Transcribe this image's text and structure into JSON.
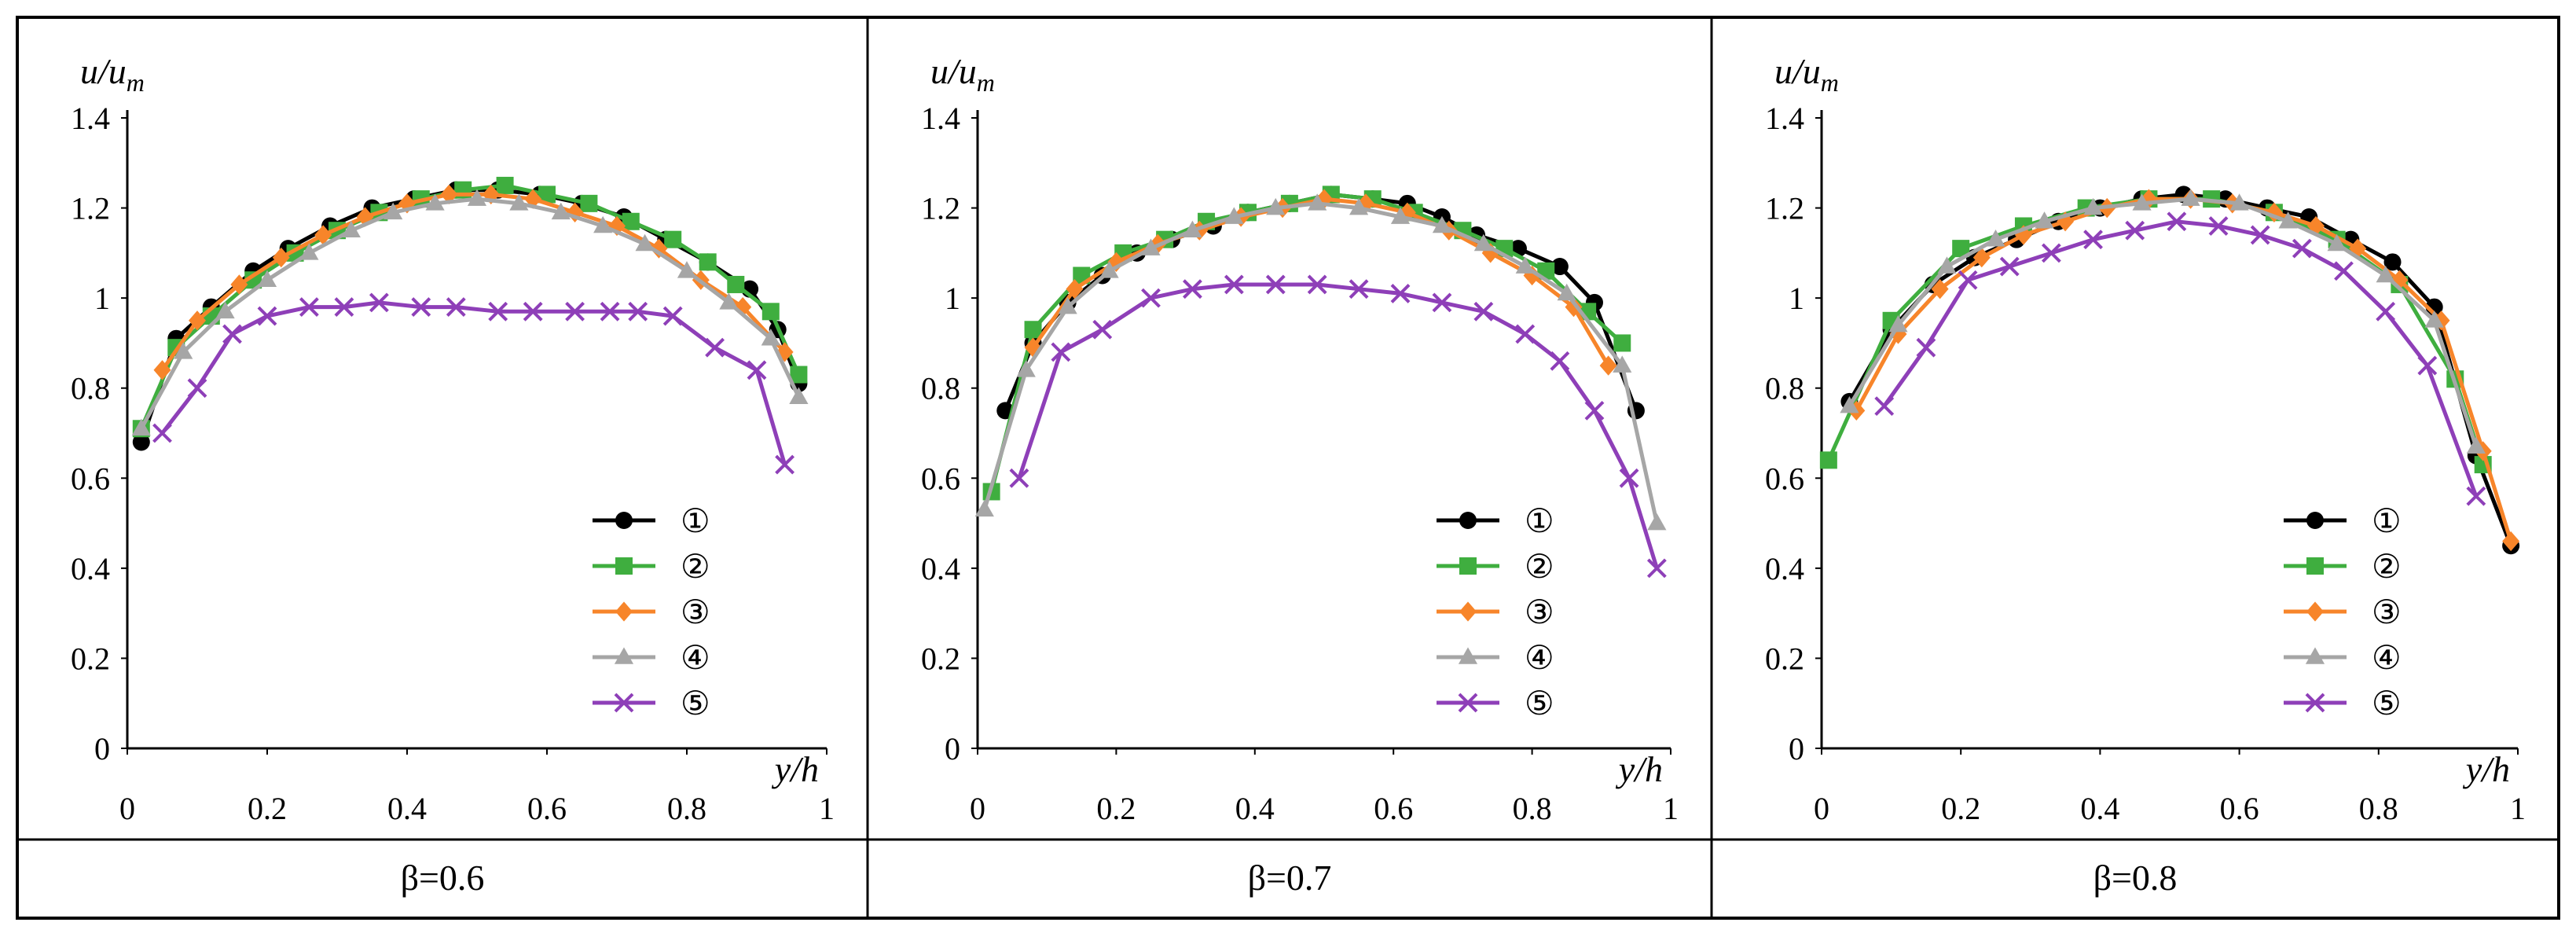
{
  "figure": {
    "y_axis_label_main": "u/u",
    "y_axis_label_sub": "m",
    "x_axis_label": "y/h",
    "legend_labels": [
      "①",
      "②",
      "③",
      "④",
      "⑤"
    ],
    "panel_captions": [
      "β=0.6",
      "β=0.7",
      "β=0.8"
    ]
  },
  "colors": {
    "s1": "#000000",
    "s2": "#3fae3f",
    "s3": "#f7852a",
    "s4": "#a6a6a6",
    "s5": "#8e3fb8",
    "border": "#000000",
    "axis": "#000000"
  },
  "chart_data": [
    {
      "type": "line",
      "title": "β=0.6",
      "xlabel": "y/h",
      "ylabel": "u/u_m",
      "xlim": [
        0,
        1
      ],
      "ylim": [
        0,
        1.4
      ],
      "xticks": [
        "0",
        "0.2",
        "0.4",
        "0.6",
        "0.8",
        "1"
      ],
      "yticks": [
        "0",
        "0.2",
        "0.4",
        "0.6",
        "0.8",
        "1",
        "1.2",
        "1.4"
      ],
      "legend": "bottom-right",
      "series": [
        {
          "name": "①",
          "marker": "circle",
          "x": [
            0.02,
            0.07,
            0.12,
            0.18,
            0.23,
            0.29,
            0.35,
            0.41,
            0.47,
            0.53,
            0.59,
            0.65,
            0.71,
            0.77,
            0.83,
            0.89,
            0.93,
            0.96
          ],
          "y": [
            0.68,
            0.91,
            0.98,
            1.06,
            1.11,
            1.16,
            1.2,
            1.22,
            1.24,
            1.24,
            1.23,
            1.21,
            1.18,
            1.13,
            1.08,
            1.02,
            0.93,
            0.81
          ]
        },
        {
          "name": "②",
          "marker": "square",
          "x": [
            0.02,
            0.07,
            0.12,
            0.18,
            0.24,
            0.3,
            0.36,
            0.42,
            0.48,
            0.54,
            0.6,
            0.66,
            0.72,
            0.78,
            0.83,
            0.87,
            0.92,
            0.96
          ],
          "y": [
            0.71,
            0.89,
            0.96,
            1.04,
            1.1,
            1.15,
            1.19,
            1.22,
            1.24,
            1.25,
            1.23,
            1.21,
            1.17,
            1.13,
            1.08,
            1.03,
            0.97,
            0.83
          ]
        },
        {
          "name": "③",
          "marker": "diamond",
          "x": [
            0.05,
            0.1,
            0.16,
            0.22,
            0.28,
            0.34,
            0.4,
            0.46,
            0.52,
            0.58,
            0.64,
            0.7,
            0.76,
            0.82,
            0.88,
            0.94
          ],
          "y": [
            0.84,
            0.95,
            1.03,
            1.09,
            1.14,
            1.18,
            1.21,
            1.23,
            1.23,
            1.22,
            1.19,
            1.16,
            1.11,
            1.04,
            0.98,
            0.88
          ]
        },
        {
          "name": "④",
          "marker": "triangle",
          "x": [
            0.02,
            0.08,
            0.14,
            0.2,
            0.26,
            0.32,
            0.38,
            0.44,
            0.5,
            0.56,
            0.62,
            0.68,
            0.74,
            0.8,
            0.86,
            0.92,
            0.96
          ],
          "y": [
            0.71,
            0.88,
            0.97,
            1.04,
            1.1,
            1.15,
            1.19,
            1.21,
            1.22,
            1.21,
            1.19,
            1.16,
            1.12,
            1.06,
            0.99,
            0.91,
            0.78
          ]
        },
        {
          "name": "⑤",
          "marker": "x",
          "x": [
            0.05,
            0.1,
            0.15,
            0.2,
            0.26,
            0.31,
            0.36,
            0.42,
            0.47,
            0.53,
            0.58,
            0.64,
            0.69,
            0.73,
            0.78,
            0.84,
            0.9,
            0.94
          ],
          "y": [
            0.7,
            0.8,
            0.92,
            0.96,
            0.98,
            0.98,
            0.99,
            0.98,
            0.98,
            0.97,
            0.97,
            0.97,
            0.97,
            0.97,
            0.96,
            0.89,
            0.84,
            0.63
          ]
        }
      ]
    },
    {
      "type": "line",
      "title": "β=0.7",
      "xlabel": "y/h",
      "ylabel": "u/u_m",
      "xlim": [
        0,
        1
      ],
      "ylim": [
        0,
        1.4
      ],
      "xticks": [
        "0",
        "0.2",
        "0.4",
        "0.6",
        "0.8",
        "1"
      ],
      "yticks": [
        "0",
        "0.2",
        "0.4",
        "0.6",
        "0.8",
        "1",
        "1.2",
        "1.4"
      ],
      "legend": "bottom-right",
      "series": [
        {
          "name": "①",
          "marker": "circle",
          "x": [
            0.04,
            0.08,
            0.13,
            0.18,
            0.23,
            0.28,
            0.34,
            0.39,
            0.45,
            0.51,
            0.57,
            0.62,
            0.67,
            0.72,
            0.78,
            0.84,
            0.89,
            0.95
          ],
          "y": [
            0.75,
            0.9,
            0.99,
            1.05,
            1.1,
            1.13,
            1.16,
            1.19,
            1.21,
            1.23,
            1.22,
            1.21,
            1.18,
            1.14,
            1.11,
            1.07,
            0.99,
            0.75
          ]
        },
        {
          "name": "②",
          "marker": "square",
          "x": [
            0.02,
            0.08,
            0.15,
            0.21,
            0.27,
            0.33,
            0.39,
            0.45,
            0.51,
            0.57,
            0.63,
            0.7,
            0.76,
            0.82,
            0.88,
            0.93
          ],
          "y": [
            0.57,
            0.93,
            1.05,
            1.1,
            1.13,
            1.17,
            1.19,
            1.21,
            1.23,
            1.22,
            1.19,
            1.15,
            1.11,
            1.06,
            0.97,
            0.9
          ]
        },
        {
          "name": "③",
          "marker": "diamond",
          "x": [
            0.08,
            0.14,
            0.2,
            0.26,
            0.32,
            0.38,
            0.44,
            0.5,
            0.56,
            0.62,
            0.68,
            0.74,
            0.8,
            0.86,
            0.91
          ],
          "y": [
            0.89,
            1.02,
            1.08,
            1.12,
            1.15,
            1.18,
            1.2,
            1.22,
            1.21,
            1.19,
            1.15,
            1.1,
            1.05,
            0.98,
            0.85
          ]
        },
        {
          "name": "④",
          "marker": "triangle",
          "x": [
            0.01,
            0.07,
            0.13,
            0.19,
            0.25,
            0.31,
            0.37,
            0.43,
            0.49,
            0.55,
            0.61,
            0.67,
            0.73,
            0.79,
            0.85,
            0.93,
            0.98
          ],
          "y": [
            0.53,
            0.84,
            0.98,
            1.06,
            1.11,
            1.15,
            1.18,
            1.2,
            1.21,
            1.2,
            1.18,
            1.16,
            1.12,
            1.07,
            1.01,
            0.85,
            0.5
          ]
        },
        {
          "name": "⑤",
          "marker": "x",
          "x": [
            0.06,
            0.12,
            0.18,
            0.25,
            0.31,
            0.37,
            0.43,
            0.49,
            0.55,
            0.61,
            0.67,
            0.73,
            0.79,
            0.84,
            0.89,
            0.94,
            0.98
          ],
          "y": [
            0.6,
            0.88,
            0.93,
            1.0,
            1.02,
            1.03,
            1.03,
            1.03,
            1.02,
            1.01,
            0.99,
            0.97,
            0.92,
            0.86,
            0.75,
            0.6,
            0.4
          ]
        }
      ]
    },
    {
      "type": "line",
      "title": "β=0.8",
      "xlabel": "y/h",
      "ylabel": "u/u_m",
      "xlim": [
        0,
        1
      ],
      "ylim": [
        0,
        1.4
      ],
      "xticks": [
        "0",
        "0.2",
        "0.4",
        "0.6",
        "0.8",
        "1"
      ],
      "yticks": [
        "0",
        "0.2",
        "0.4",
        "0.6",
        "0.8",
        "1",
        "1.2",
        "1.4"
      ],
      "legend": "bottom-right",
      "series": [
        {
          "name": "①",
          "marker": "circle",
          "x": [
            0.04,
            0.1,
            0.16,
            0.22,
            0.28,
            0.34,
            0.4,
            0.46,
            0.52,
            0.58,
            0.64,
            0.7,
            0.76,
            0.82,
            0.88,
            0.94,
            0.99
          ],
          "y": [
            0.77,
            0.93,
            1.03,
            1.09,
            1.13,
            1.17,
            1.2,
            1.22,
            1.23,
            1.22,
            1.2,
            1.18,
            1.13,
            1.08,
            0.98,
            0.65,
            0.45
          ]
        },
        {
          "name": "②",
          "marker": "square",
          "x": [
            0.01,
            0.1,
            0.2,
            0.29,
            0.38,
            0.47,
            0.56,
            0.65,
            0.74,
            0.83,
            0.91,
            0.95
          ],
          "y": [
            0.64,
            0.95,
            1.11,
            1.16,
            1.2,
            1.22,
            1.22,
            1.19,
            1.13,
            1.03,
            0.82,
            0.63
          ]
        },
        {
          "name": "③",
          "marker": "diamond",
          "x": [
            0.05,
            0.11,
            0.17,
            0.23,
            0.29,
            0.35,
            0.41,
            0.47,
            0.53,
            0.59,
            0.65,
            0.71,
            0.77,
            0.83,
            0.89,
            0.95,
            0.99
          ],
          "y": [
            0.75,
            0.92,
            1.02,
            1.09,
            1.14,
            1.17,
            1.2,
            1.22,
            1.22,
            1.21,
            1.19,
            1.16,
            1.11,
            1.04,
            0.95,
            0.66,
            0.46
          ]
        },
        {
          "name": "④",
          "marker": "triangle",
          "x": [
            0.04,
            0.11,
            0.18,
            0.25,
            0.32,
            0.39,
            0.46,
            0.53,
            0.6,
            0.67,
            0.74,
            0.81,
            0.88,
            0.94
          ],
          "y": [
            0.76,
            0.94,
            1.07,
            1.13,
            1.17,
            1.2,
            1.21,
            1.22,
            1.21,
            1.17,
            1.12,
            1.05,
            0.95,
            0.67
          ]
        },
        {
          "name": "⑤",
          "marker": "x",
          "x": [
            0.09,
            0.15,
            0.21,
            0.27,
            0.33,
            0.39,
            0.45,
            0.51,
            0.57,
            0.63,
            0.69,
            0.75,
            0.81,
            0.87,
            0.94
          ],
          "y": [
            0.76,
            0.89,
            1.04,
            1.07,
            1.1,
            1.13,
            1.15,
            1.17,
            1.16,
            1.14,
            1.11,
            1.06,
            0.97,
            0.85,
            0.56
          ]
        }
      ]
    }
  ]
}
